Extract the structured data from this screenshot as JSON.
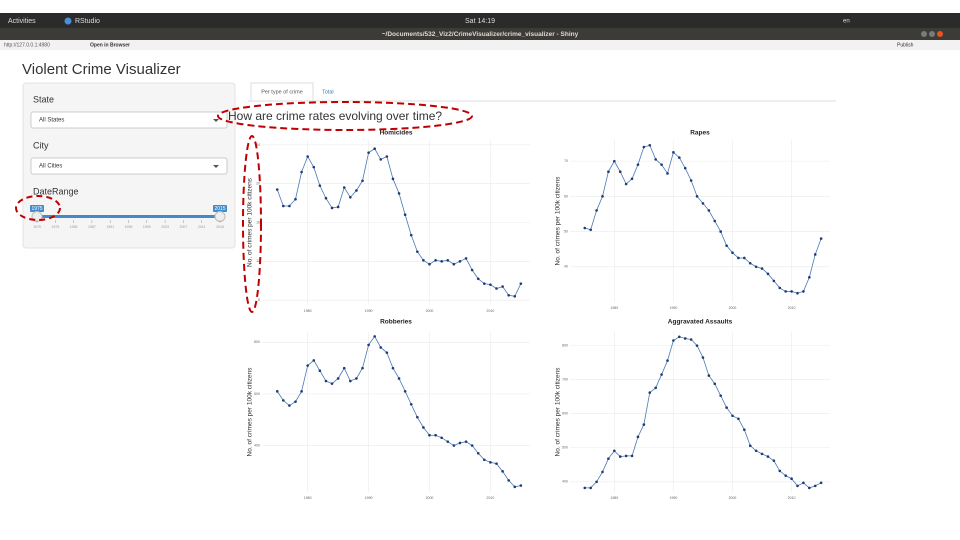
{
  "topbar": {
    "activities": "Activities",
    "app": "RStudio",
    "clock": "Sat 14:19",
    "lang": "en"
  },
  "window": {
    "title": "~/Documents/532_Viz2/CrimeVisualizer/crime_visualizer - Shiny"
  },
  "toolbar": {
    "url": "http://127.0.0.1:4980",
    "open": "Open in Browser",
    "publish": "Publish"
  },
  "app": {
    "title": "Violent Crime Visualizer",
    "sidebar": {
      "state_label": "State",
      "state_value": "All States",
      "city_label": "City",
      "city_value": "All Cities",
      "range_label": "DateRange",
      "range_min": "1975",
      "range_max": "2015",
      "range_grid": [
        "1975",
        "1979",
        "1983",
        "1987",
        "1991",
        "1995",
        "1999",
        "2003",
        "2007",
        "2011",
        "2015"
      ]
    },
    "tabs": [
      "Per type of crime",
      "Total"
    ],
    "heading": "How are crime rates evolving over time?"
  },
  "chart_data": [
    {
      "type": "line",
      "title": "Homicides",
      "ylabel": "No. of crimes per 100k citizens",
      "color": "#4a78b5",
      "point_color": "#1f3b73",
      "grid": true,
      "x": [
        1975,
        1976,
        1977,
        1978,
        1979,
        1980,
        1981,
        1982,
        1983,
        1984,
        1985,
        1986,
        1987,
        1988,
        1989,
        1990,
        1991,
        1992,
        1993,
        1994,
        1995,
        1996,
        1997,
        1998,
        1999,
        2000,
        2001,
        2002,
        2003,
        2004,
        2005,
        2006,
        2007,
        2008,
        2009,
        2010,
        2011,
        2012,
        2013,
        2014,
        2015
      ],
      "values": [
        19.4,
        17.7,
        17.7,
        18.4,
        21.2,
        22.8,
        21.7,
        19.8,
        18.5,
        17.5,
        17.6,
        19.6,
        18.6,
        19.3,
        20.3,
        23.2,
        23.6,
        22.5,
        22.8,
        20.5,
        19.0,
        16.8,
        14.7,
        13.0,
        12.1,
        11.7,
        12.1,
        12.0,
        12.1,
        11.7,
        12.0,
        12.3,
        11.1,
        10.2,
        9.7,
        9.6,
        9.2,
        9.4,
        8.5,
        8.4,
        9.7
      ],
      "xlim": [
        1972.5,
        2016.5
      ],
      "xticks": [
        1980,
        1990,
        2000,
        2010
      ],
      "ylim": [
        7.5,
        24.5
      ],
      "yticks": [
        8,
        12,
        16,
        20,
        24
      ]
    },
    {
      "type": "line",
      "title": "Rapes",
      "ylabel": "No. of crimes per 100k citizens",
      "color": "#4a78b5",
      "point_color": "#1f3b73",
      "grid": true,
      "x": [
        1975,
        1976,
        1977,
        1978,
        1979,
        1980,
        1981,
        1982,
        1983,
        1984,
        1985,
        1986,
        1987,
        1988,
        1989,
        1990,
        1991,
        1992,
        1993,
        1994,
        1995,
        1996,
        1997,
        1998,
        1999,
        2000,
        2001,
        2002,
        2003,
        2004,
        2005,
        2006,
        2007,
        2008,
        2009,
        2010,
        2011,
        2012,
        2013,
        2014,
        2015
      ],
      "values": [
        51,
        50.5,
        56,
        60,
        67,
        70,
        67,
        63.5,
        65,
        69,
        74,
        74.5,
        70.5,
        69,
        66.5,
        72.5,
        71,
        68,
        64.5,
        60,
        58,
        56,
        53,
        50,
        46,
        44,
        42.5,
        42.5,
        41,
        40,
        39.5,
        38,
        36,
        34,
        33,
        33,
        32.5,
        33,
        37,
        43.5,
        48
      ],
      "xlim": [
        1972.5,
        2016.5
      ],
      "xticks": [
        1980,
        1990,
        2000,
        2010
      ],
      "ylim": [
        30,
        76
      ],
      "yticks": [
        40,
        50,
        60,
        70
      ]
    },
    {
      "type": "line",
      "title": "Robberies",
      "ylabel": "No. of crimes per 100k citizens",
      "color": "#4a78b5",
      "point_color": "#1f3b73",
      "grid": true,
      "x": [
        1975,
        1976,
        1977,
        1978,
        1979,
        1980,
        1981,
        1982,
        1983,
        1984,
        1985,
        1986,
        1987,
        1988,
        1989,
        1990,
        1991,
        1992,
        1993,
        1994,
        1995,
        1996,
        1997,
        1998,
        1999,
        2000,
        2001,
        2002,
        2003,
        2004,
        2005,
        2006,
        2007,
        2008,
        2009,
        2010,
        2011,
        2012,
        2013,
        2014,
        2015
      ],
      "values": [
        610,
        575,
        555,
        570,
        610,
        710,
        730,
        690,
        650,
        640,
        660,
        700,
        650,
        660,
        700,
        790,
        823,
        780,
        760,
        700,
        660,
        610,
        560,
        510,
        470,
        440,
        440,
        430,
        415,
        400,
        410,
        415,
        400,
        370,
        345,
        335,
        330,
        300,
        265,
        240,
        245
      ],
      "xlim": [
        1972.5,
        2016.5
      ],
      "xticks": [
        1980,
        1990,
        2000,
        2010
      ],
      "ylim": [
        220,
        840
      ],
      "yticks": [
        400,
        600,
        800
      ]
    },
    {
      "type": "line",
      "title": "Aggravated Assaults",
      "ylabel": "No. of crimes per 100k citizens",
      "color": "#4a78b5",
      "point_color": "#1f3b73",
      "grid": true,
      "x": [
        1975,
        1976,
        1977,
        1978,
        1979,
        1980,
        1981,
        1982,
        1983,
        1984,
        1985,
        1986,
        1987,
        1988,
        1989,
        1990,
        1991,
        1992,
        1993,
        1994,
        1995,
        1996,
        1997,
        1998,
        1999,
        2000,
        2001,
        2002,
        2003,
        2004,
        2005,
        2006,
        2007,
        2008,
        2009,
        2010,
        2011,
        2012,
        2013,
        2014,
        2015
      ],
      "values": [
        382,
        382,
        400,
        429,
        468,
        491,
        474,
        476,
        476,
        532,
        568,
        662,
        676,
        715,
        756,
        815,
        826,
        821,
        818,
        800,
        765,
        712,
        688,
        653,
        618,
        594,
        585,
        553,
        506,
        491,
        482,
        474,
        462,
        432,
        418,
        409,
        388,
        397,
        382,
        388,
        397
      ],
      "xlim": [
        1972.5,
        2016.5
      ],
      "xticks": [
        1980,
        1990,
        2000,
        2010
      ],
      "ylim": [
        370,
        840
      ],
      "yticks": [
        400,
        500,
        600,
        700,
        800
      ]
    }
  ]
}
